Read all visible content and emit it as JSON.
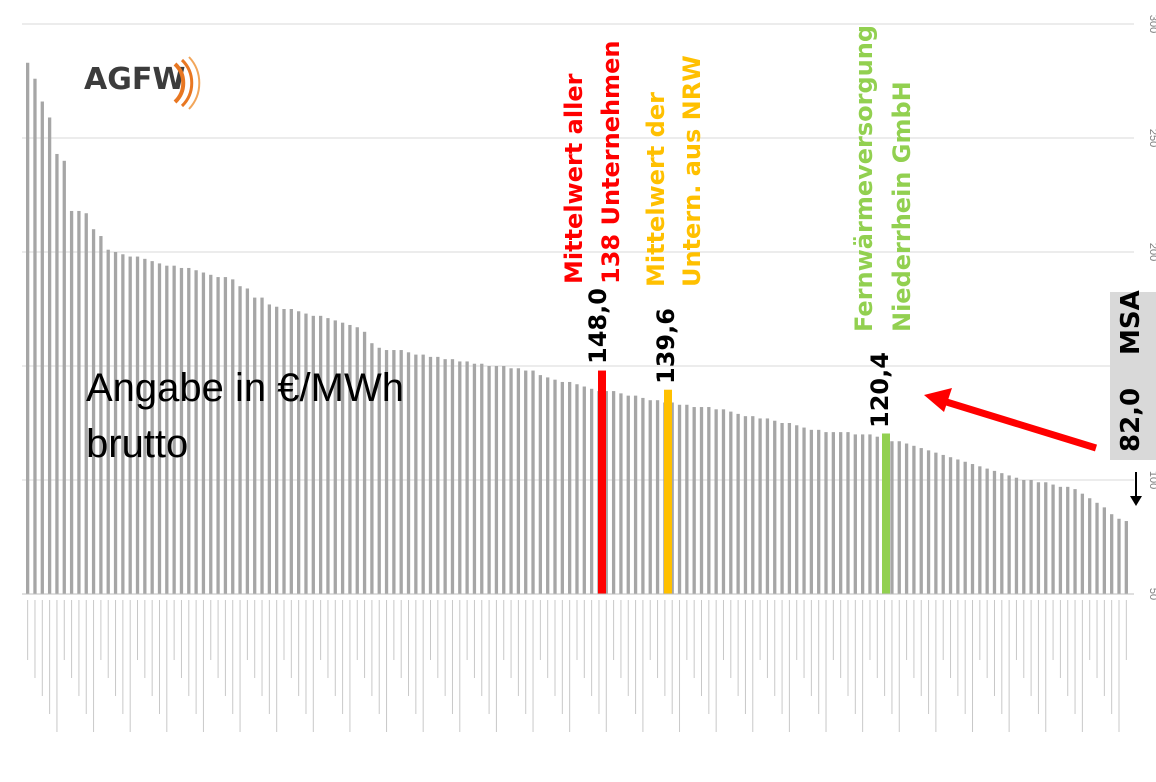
{
  "logo": {
    "text": "AGFW"
  },
  "note": {
    "line1": "Angabe in €/MWh",
    "line2": "brutto"
  },
  "colors": {
    "bar": "#a6a6a6",
    "all_mean": "#ff0000",
    "nrw_mean": "#ffc000",
    "company": "#92d050",
    "arrow": "#ff0000",
    "msa_box": "#d9d9d9",
    "grid": "#d9d9d9"
  },
  "callouts": {
    "all_mean": {
      "value": "148,0",
      "line1": "Mittelwert aller",
      "line2": "138 Unternehmen"
    },
    "nrw_mean": {
      "value": "139,6",
      "line1": "Mittelwert der",
      "line2": "Untern. aus NRW"
    },
    "company": {
      "value": "120,4",
      "line1": "Fernwärmeversorgung",
      "line2": "Niederrhein GmbH"
    },
    "msa": {
      "value": "82,0",
      "label": "MSA"
    }
  },
  "chart_data": {
    "type": "bar",
    "orientation": "rotated-90",
    "ylim": [
      50,
      300
    ],
    "yticks": [
      50,
      100,
      150,
      200,
      250,
      300
    ],
    "grid": true,
    "categories_note": "138 company names printed at illegible size along the bottom axis",
    "values": [
      283,
      276,
      266,
      259,
      243,
      240,
      218,
      218,
      217,
      210,
      207,
      201,
      200,
      199,
      198,
      198,
      197,
      196,
      195,
      194,
      194,
      193,
      193,
      192,
      191,
      190,
      189,
      189,
      188,
      185,
      184,
      180,
      180,
      177,
      176,
      175,
      175,
      174,
      173,
      172,
      172,
      171,
      170,
      169,
      168,
      167,
      165,
      160,
      158,
      157,
      157,
      157,
      156,
      155,
      155,
      154,
      154,
      153,
      153,
      152,
      152,
      151,
      151,
      150,
      150,
      150,
      149,
      149,
      148,
      148,
      146,
      145,
      144,
      143,
      143,
      142,
      141,
      140,
      139,
      139,
      139,
      138,
      137,
      137,
      136,
      135,
      135,
      134,
      134,
      133,
      133,
      132,
      132,
      132,
      131,
      131,
      130,
      129,
      128,
      128,
      127,
      127,
      126,
      125,
      125,
      124,
      123,
      122,
      122,
      121,
      121,
      121,
      121,
      120,
      120,
      120,
      119,
      118,
      117,
      117,
      116,
      115,
      114,
      113,
      112,
      111,
      110,
      109,
      108,
      107,
      106,
      105,
      104,
      103,
      102,
      101,
      100,
      100,
      99,
      99,
      98,
      97,
      97,
      96,
      94,
      92,
      90,
      88,
      85,
      83,
      82
    ],
    "highlights": [
      {
        "label": "Mittelwert aller 138 Unternehmen",
        "value": 148.0,
        "color": "#ff0000"
      },
      {
        "label": "Mittelwert der Untern. aus NRW",
        "value": 139.6,
        "color": "#ffc000"
      },
      {
        "label": "Fernwärmeversorgung Niederrhein GmbH",
        "value": 120.4,
        "color": "#92d050"
      },
      {
        "label": "MSA",
        "value": 82.0
      }
    ]
  }
}
